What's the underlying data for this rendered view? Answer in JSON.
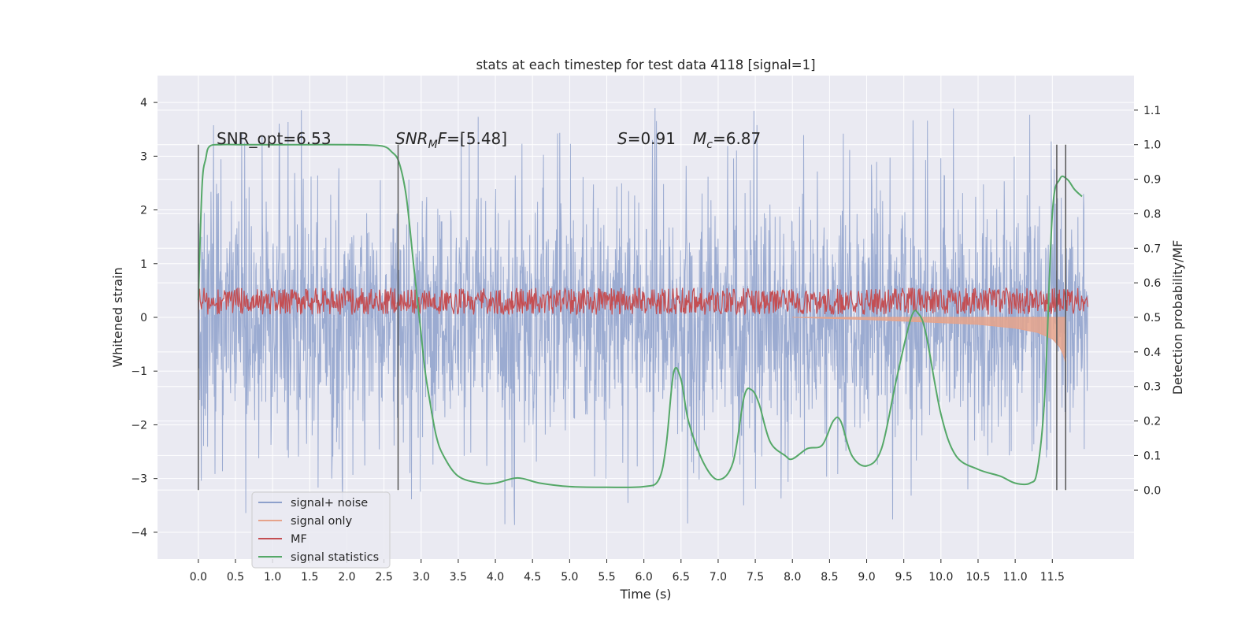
{
  "chart_data": {
    "type": "line",
    "title": "stats at each timestep for test data 4118 [signal=1]",
    "xlabel": "Time (s)",
    "ylabel": "Whitened strain",
    "y2label": "Detection probability/MF",
    "xlim": [
      -0.55,
      12.6
    ],
    "ylim": [
      -4.5,
      4.5
    ],
    "y2lim": [
      -0.2,
      1.2
    ],
    "grid": true,
    "x_ticks": [
      "0.0",
      "0.5",
      "1.0",
      "1.5",
      "2.0",
      "2.5",
      "3.0",
      "3.5",
      "4.0",
      "4.5",
      "5.0",
      "5.5",
      "6.0",
      "6.5",
      "7.0",
      "7.5",
      "8.0",
      "8.5",
      "9.0",
      "9.5",
      "10.0",
      "10.5",
      "11.0",
      "11.5"
    ],
    "y_ticks": [
      "−4",
      "−3",
      "−2",
      "−1",
      "0",
      "1",
      "2",
      "3",
      "4"
    ],
    "y2_ticks": [
      "0.0",
      "0.1",
      "0.2",
      "0.3",
      "0.4",
      "0.5",
      "0.6",
      "0.7",
      "0.8",
      "0.9",
      "1.0",
      "1.1"
    ],
    "annotations": {
      "snr_opt": "SNR_opt=6.53",
      "snr_mf_a": "SNR",
      "snr_mf_sub": "M",
      "snr_mf_b": "F",
      "snr_mf_c": "=[5.48]",
      "s_sym": "S",
      "s_val": "=0.91",
      "mc_sym": "M",
      "mc_sub": "c",
      "mc_val": "=6.87"
    },
    "vertical_lines_x": [
      0.0,
      2.69,
      11.56,
      11.68
    ],
    "legend": {
      "placement": "bottom-left",
      "entries": [
        "signal+ noise",
        "signal only",
        "MF",
        "signal statistics"
      ]
    },
    "series": [
      {
        "name": "signal+ noise",
        "color": "#8da0cb",
        "x_range": [
          0.0,
          11.98
        ],
        "typical_abs_range": [
          1.3,
          2.0
        ],
        "peak_max": 4.1,
        "peak_min": -4.1
      },
      {
        "name": "signal only",
        "color": "#e6a38b",
        "x": [
          8.0,
          9.0,
          9.5,
          10.0,
          10.5,
          11.0,
          11.3,
          11.5,
          11.6,
          11.65,
          11.68
        ],
        "y": [
          0.0,
          -0.04,
          -0.07,
          -0.1,
          -0.13,
          -0.2,
          -0.28,
          -0.4,
          -0.55,
          -0.7,
          -0.85
        ]
      },
      {
        "name": "MF",
        "color": "#c44e52",
        "x_range": [
          0.0,
          11.98
        ],
        "band": [
          0.05,
          0.55
        ],
        "spike": {
          "x": 11.68,
          "y": 1.0
        }
      },
      {
        "name": "signal statistics",
        "color": "#55a868",
        "axis": "right",
        "x": [
          0.0,
          0.05,
          0.1,
          0.15,
          0.3,
          0.6,
          1.0,
          1.5,
          2.0,
          2.3,
          2.5,
          2.6,
          2.7,
          2.8,
          2.9,
          3.0,
          3.05,
          3.1,
          3.2,
          3.3,
          3.5,
          3.8,
          4.0,
          4.3,
          4.6,
          5.0,
          5.5,
          6.0,
          6.2,
          6.3,
          6.4,
          6.5,
          6.6,
          6.8,
          7.0,
          7.2,
          7.35,
          7.45,
          7.55,
          7.7,
          7.9,
          8.0,
          8.2,
          8.4,
          8.55,
          8.65,
          8.8,
          9.0,
          9.2,
          9.4,
          9.6,
          9.7,
          9.8,
          10.0,
          10.2,
          10.5,
          10.8,
          11.0,
          11.2,
          11.3,
          11.4,
          11.5,
          11.6,
          11.7,
          11.8,
          11.9
        ],
        "y": [
          0.55,
          0.88,
          0.96,
          0.995,
          1.0,
          1.0,
          1.0,
          1.0,
          1.0,
          0.999,
          0.995,
          0.98,
          0.95,
          0.85,
          0.65,
          0.45,
          0.35,
          0.28,
          0.16,
          0.1,
          0.04,
          0.02,
          0.02,
          0.035,
          0.02,
          0.01,
          0.008,
          0.01,
          0.03,
          0.13,
          0.34,
          0.32,
          0.2,
          0.08,
          0.03,
          0.08,
          0.27,
          0.29,
          0.25,
          0.14,
          0.1,
          0.09,
          0.12,
          0.13,
          0.2,
          0.2,
          0.1,
          0.07,
          0.12,
          0.32,
          0.5,
          0.51,
          0.45,
          0.22,
          0.1,
          0.06,
          0.04,
          0.02,
          0.02,
          0.06,
          0.28,
          0.8,
          0.9,
          0.9,
          0.87,
          0.85
        ]
      }
    ]
  }
}
